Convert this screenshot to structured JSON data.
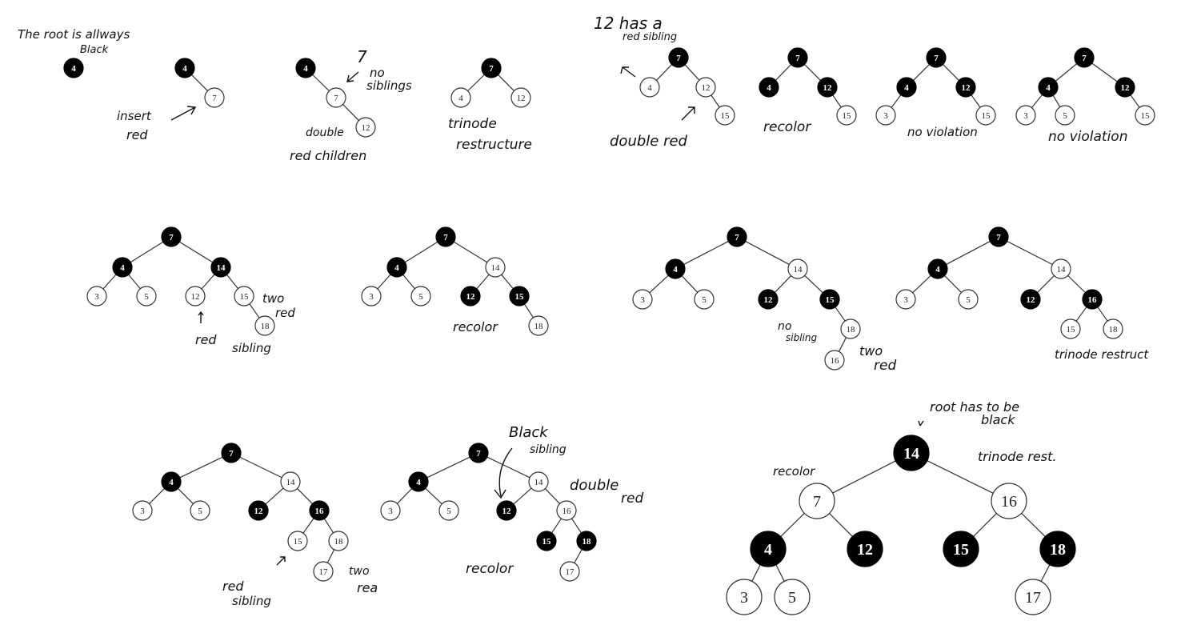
{
  "annotations": {
    "root_black": [
      "The root is allways",
      "Black"
    ],
    "insert_red": [
      "insert",
      "red"
    ],
    "no_siblings": [
      "7",
      "no",
      "siblings"
    ],
    "double_red_children": [
      "double",
      "red children"
    ],
    "trinode_restructure": [
      "trinode",
      "restructure"
    ],
    "red_sibling_12": [
      "12 has a",
      "red sibling"
    ],
    "double_red": "double red",
    "recolor_1": "recolor",
    "no_violation_1": "no violation",
    "no_violation_2": "no violation",
    "two_red_1": [
      "two",
      "red"
    ],
    "red_sibling_1": [
      "red",
      "sibling"
    ],
    "recolor_2": "recolor",
    "no_sibling": [
      "no",
      "sibling"
    ],
    "two_red_2": [
      "two",
      "red"
    ],
    "trinode_restruct": "trinode restruct",
    "red_sibling_2": [
      "red",
      "sibling"
    ],
    "two_red_3": [
      "two",
      "rea"
    ],
    "black_sibling": [
      "Black",
      "sibling"
    ],
    "double_red_2": [
      "double",
      "red"
    ],
    "recolor_3": "recolor",
    "recolor_4": "recolor",
    "root_has_to_be_black": [
      "root has to be",
      "black"
    ],
    "trinode_rest": "trinode rest."
  },
  "trees": [
    {
      "id": "t1",
      "nodes": [
        {
          "id": "a",
          "label": "4",
          "color": "black"
        }
      ],
      "edges": []
    },
    {
      "id": "t2",
      "nodes": [
        {
          "id": "a",
          "label": "4",
          "color": "black"
        },
        {
          "id": "b",
          "label": "7",
          "color": "white"
        }
      ],
      "edges": [
        [
          "a",
          "b"
        ]
      ]
    },
    {
      "id": "t3",
      "nodes": [
        {
          "id": "a",
          "label": "4",
          "color": "black"
        },
        {
          "id": "b",
          "label": "7",
          "color": "white"
        },
        {
          "id": "c",
          "label": "12",
          "color": "white"
        }
      ],
      "edges": [
        [
          "a",
          "b"
        ],
        [
          "b",
          "c"
        ]
      ]
    },
    {
      "id": "t4",
      "nodes": [
        {
          "id": "a",
          "label": "7",
          "color": "black"
        },
        {
          "id": "b",
          "label": "4",
          "color": "white"
        },
        {
          "id": "c",
          "label": "12",
          "color": "white"
        }
      ],
      "edges": [
        [
          "a",
          "b"
        ],
        [
          "a",
          "c"
        ]
      ]
    },
    {
      "id": "t5",
      "nodes": [
        {
          "id": "a",
          "label": "7",
          "color": "black"
        },
        {
          "id": "b",
          "label": "4",
          "color": "white"
        },
        {
          "id": "c",
          "label": "12",
          "color": "white"
        },
        {
          "id": "d",
          "label": "15",
          "color": "white"
        }
      ],
      "edges": [
        [
          "a",
          "b"
        ],
        [
          "a",
          "c"
        ],
        [
          "c",
          "d"
        ]
      ]
    },
    {
      "id": "t6",
      "nodes": [
        {
          "id": "a",
          "label": "7",
          "color": "black"
        },
        {
          "id": "b",
          "label": "4",
          "color": "black"
        },
        {
          "id": "c",
          "label": "12",
          "color": "black"
        },
        {
          "id": "d",
          "label": "15",
          "color": "white"
        }
      ],
      "edges": [
        [
          "a",
          "b"
        ],
        [
          "a",
          "c"
        ],
        [
          "c",
          "d"
        ]
      ]
    },
    {
      "id": "t7",
      "nodes": [
        {
          "id": "a",
          "label": "7",
          "color": "black"
        },
        {
          "id": "b",
          "label": "4",
          "color": "black"
        },
        {
          "id": "c",
          "label": "12",
          "color": "black"
        },
        {
          "id": "e",
          "label": "3",
          "color": "white"
        },
        {
          "id": "d",
          "label": "15",
          "color": "white"
        }
      ],
      "edges": [
        [
          "a",
          "b"
        ],
        [
          "a",
          "c"
        ],
        [
          "b",
          "e"
        ],
        [
          "c",
          "d"
        ]
      ]
    },
    {
      "id": "t8",
      "nodes": [
        {
          "id": "a",
          "label": "7",
          "color": "black"
        },
        {
          "id": "b",
          "label": "4",
          "color": "black"
        },
        {
          "id": "c",
          "label": "12",
          "color": "black"
        },
        {
          "id": "e",
          "label": "3",
          "color": "white"
        },
        {
          "id": "f",
          "label": "5",
          "color": "white"
        },
        {
          "id": "d",
          "label": "15",
          "color": "white"
        }
      ],
      "edges": [
        [
          "a",
          "b"
        ],
        [
          "a",
          "c"
        ],
        [
          "b",
          "e"
        ],
        [
          "b",
          "f"
        ],
        [
          "c",
          "d"
        ]
      ]
    },
    {
      "id": "t9",
      "nodes": [
        {
          "id": "a",
          "label": "7",
          "color": "black"
        },
        {
          "id": "b",
          "label": "4",
          "color": "black"
        },
        {
          "id": "c",
          "label": "14",
          "color": "black"
        },
        {
          "id": "e",
          "label": "3",
          "color": "white"
        },
        {
          "id": "f",
          "label": "5",
          "color": "white"
        },
        {
          "id": "g",
          "label": "12",
          "color": "white"
        },
        {
          "id": "h",
          "label": "15",
          "color": "white"
        },
        {
          "id": "i",
          "label": "18",
          "color": "white"
        }
      ],
      "edges": [
        [
          "a",
          "b"
        ],
        [
          "a",
          "c"
        ],
        [
          "b",
          "e"
        ],
        [
          "b",
          "f"
        ],
        [
          "c",
          "g"
        ],
        [
          "c",
          "h"
        ],
        [
          "h",
          "i"
        ]
      ]
    },
    {
      "id": "t10",
      "nodes": [
        {
          "id": "a",
          "label": "7",
          "color": "black"
        },
        {
          "id": "b",
          "label": "4",
          "color": "black"
        },
        {
          "id": "c",
          "label": "14",
          "color": "white"
        },
        {
          "id": "e",
          "label": "3",
          "color": "white"
        },
        {
          "id": "f",
          "label": "5",
          "color": "white"
        },
        {
          "id": "g",
          "label": "12",
          "color": "black"
        },
        {
          "id": "h",
          "label": "15",
          "color": "black"
        },
        {
          "id": "i",
          "label": "18",
          "color": "white"
        }
      ],
      "edges": [
        [
          "a",
          "b"
        ],
        [
          "a",
          "c"
        ],
        [
          "b",
          "e"
        ],
        [
          "b",
          "f"
        ],
        [
          "c",
          "g"
        ],
        [
          "c",
          "h"
        ],
        [
          "h",
          "i"
        ]
      ]
    },
    {
      "id": "t11",
      "nodes": [
        {
          "id": "a",
          "label": "7",
          "color": "black"
        },
        {
          "id": "b",
          "label": "4",
          "color": "black"
        },
        {
          "id": "c",
          "label": "14",
          "color": "white"
        },
        {
          "id": "e",
          "label": "3",
          "color": "white"
        },
        {
          "id": "f",
          "label": "5",
          "color": "white"
        },
        {
          "id": "g",
          "label": "12",
          "color": "black"
        },
        {
          "id": "h",
          "label": "15",
          "color": "black"
        },
        {
          "id": "i",
          "label": "18",
          "color": "white"
        },
        {
          "id": "j",
          "label": "16",
          "color": "white"
        }
      ],
      "edges": [
        [
          "a",
          "b"
        ],
        [
          "a",
          "c"
        ],
        [
          "b",
          "e"
        ],
        [
          "b",
          "f"
        ],
        [
          "c",
          "g"
        ],
        [
          "c",
          "h"
        ],
        [
          "h",
          "i"
        ],
        [
          "i",
          "j"
        ]
      ]
    },
    {
      "id": "t12",
      "nodes": [
        {
          "id": "a",
          "label": "7",
          "color": "black"
        },
        {
          "id": "b",
          "label": "4",
          "color": "black"
        },
        {
          "id": "c",
          "label": "14",
          "color": "white"
        },
        {
          "id": "e",
          "label": "3",
          "color": "white"
        },
        {
          "id": "f",
          "label": "5",
          "color": "white"
        },
        {
          "id": "g",
          "label": "12",
          "color": "black"
        },
        {
          "id": "h",
          "label": "16",
          "color": "black"
        },
        {
          "id": "i",
          "label": "15",
          "color": "white"
        },
        {
          "id": "j",
          "label": "18",
          "color": "white"
        }
      ],
      "edges": [
        [
          "a",
          "b"
        ],
        [
          "a",
          "c"
        ],
        [
          "b",
          "e"
        ],
        [
          "b",
          "f"
        ],
        [
          "c",
          "g"
        ],
        [
          "c",
          "h"
        ],
        [
          "h",
          "i"
        ],
        [
          "h",
          "j"
        ]
      ]
    },
    {
      "id": "t13",
      "nodes": [
        {
          "id": "a",
          "label": "7",
          "color": "black"
        },
        {
          "id": "b",
          "label": "4",
          "color": "black"
        },
        {
          "id": "c",
          "label": "14",
          "color": "white"
        },
        {
          "id": "e",
          "label": "3",
          "color": "white"
        },
        {
          "id": "f",
          "label": "5",
          "color": "white"
        },
        {
          "id": "g",
          "label": "12",
          "color": "black"
        },
        {
          "id": "h",
          "label": "16",
          "color": "black"
        },
        {
          "id": "i",
          "label": "15",
          "color": "white"
        },
        {
          "id": "j",
          "label": "18",
          "color": "white"
        },
        {
          "id": "k",
          "label": "17",
          "color": "white"
        }
      ],
      "edges": [
        [
          "a",
          "b"
        ],
        [
          "a",
          "c"
        ],
        [
          "b",
          "e"
        ],
        [
          "b",
          "f"
        ],
        [
          "c",
          "g"
        ],
        [
          "c",
          "h"
        ],
        [
          "h",
          "i"
        ],
        [
          "h",
          "j"
        ],
        [
          "j",
          "k"
        ]
      ]
    },
    {
      "id": "t14",
      "nodes": [
        {
          "id": "a",
          "label": "7",
          "color": "black"
        },
        {
          "id": "b",
          "label": "4",
          "color": "black"
        },
        {
          "id": "c",
          "label": "14",
          "color": "white"
        },
        {
          "id": "e",
          "label": "3",
          "color": "white"
        },
        {
          "id": "f",
          "label": "5",
          "color": "white"
        },
        {
          "id": "g",
          "label": "12",
          "color": "black"
        },
        {
          "id": "h",
          "label": "16",
          "color": "white"
        },
        {
          "id": "i",
          "label": "15",
          "color": "black"
        },
        {
          "id": "j",
          "label": "18",
          "color": "black"
        },
        {
          "id": "k",
          "label": "17",
          "color": "white"
        }
      ],
      "edges": [
        [
          "a",
          "b"
        ],
        [
          "a",
          "c"
        ],
        [
          "b",
          "e"
        ],
        [
          "b",
          "f"
        ],
        [
          "c",
          "g"
        ],
        [
          "c",
          "h"
        ],
        [
          "h",
          "i"
        ],
        [
          "h",
          "j"
        ],
        [
          "j",
          "k"
        ]
      ]
    },
    {
      "id": "t15",
      "nodes": [
        {
          "id": "a",
          "label": "14",
          "color": "black"
        },
        {
          "id": "b",
          "label": "7",
          "color": "white"
        },
        {
          "id": "c",
          "label": "16",
          "color": "white"
        },
        {
          "id": "d",
          "label": "4",
          "color": "black"
        },
        {
          "id": "e",
          "label": "12",
          "color": "black"
        },
        {
          "id": "f",
          "label": "15",
          "color": "black"
        },
        {
          "id": "g",
          "label": "18",
          "color": "black"
        },
        {
          "id": "h",
          "label": "3",
          "color": "white"
        },
        {
          "id": "i",
          "label": "5",
          "color": "white"
        },
        {
          "id": "j",
          "label": "17",
          "color": "white"
        }
      ],
      "edges": [
        [
          "a",
          "b"
        ],
        [
          "a",
          "c"
        ],
        [
          "b",
          "d"
        ],
        [
          "b",
          "e"
        ],
        [
          "c",
          "f"
        ],
        [
          "c",
          "g"
        ],
        [
          "d",
          "h"
        ],
        [
          "d",
          "i"
        ],
        [
          "g",
          "j"
        ]
      ]
    }
  ]
}
